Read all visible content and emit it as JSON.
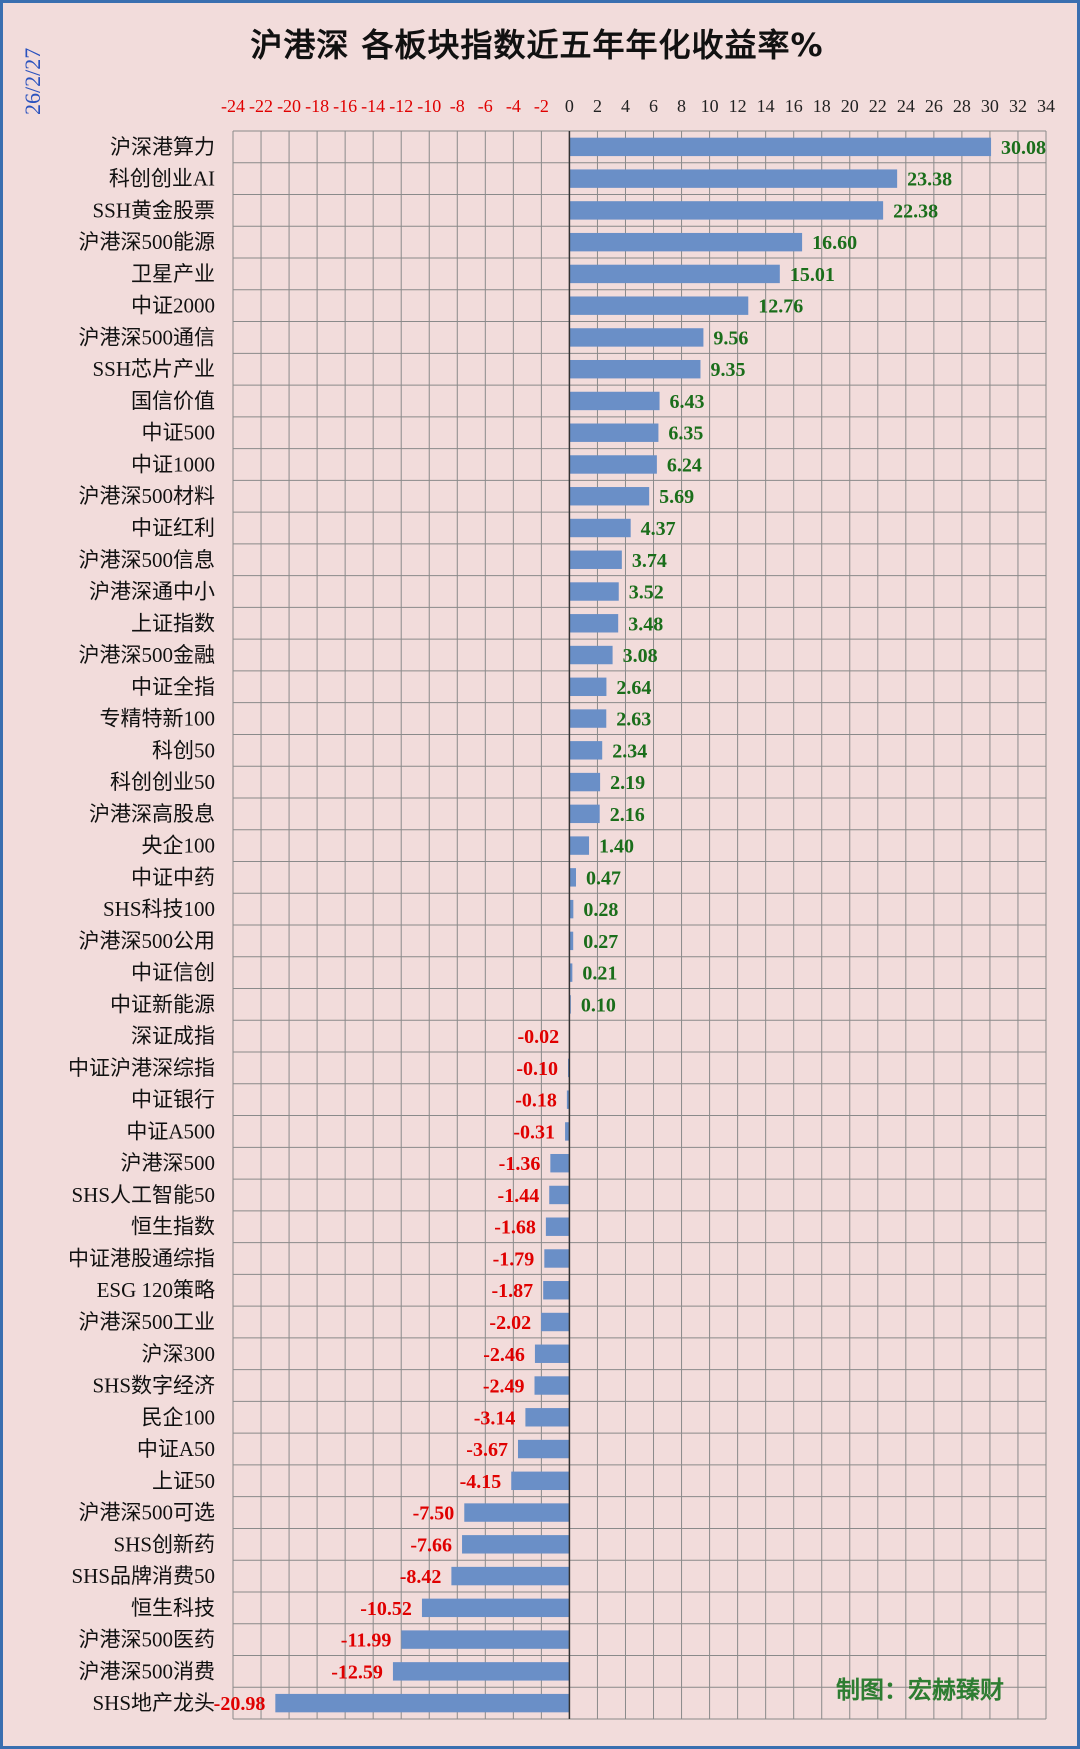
{
  "title": "沪港深 各板块指数近五年年化收益率%",
  "date_label": "26/2/27",
  "credit": "制图：宏赫臻财",
  "colors": {
    "background": "#f2dcdb",
    "bar": "#6a8fc7",
    "grid": "#8a8a8a",
    "positive_label": "#1b6e1b",
    "negative_label": "#e00000",
    "tick_negative": "#e00000",
    "tick_positive": "#222222",
    "frame": "#3a6fb0"
  },
  "chart_data": {
    "type": "bar",
    "orientation": "horizontal",
    "xlim": [
      -24,
      34
    ],
    "x_ticks": [
      -24,
      -22,
      -20,
      -18,
      -16,
      -14,
      -12,
      -10,
      -8,
      -6,
      -4,
      -2,
      0,
      2,
      4,
      6,
      8,
      10,
      12,
      14,
      16,
      18,
      20,
      22,
      24,
      26,
      28,
      30,
      32,
      34
    ],
    "x_tick_labels": [
      "-24",
      "-22",
      "-20",
      "-18",
      "-16",
      "-14",
      "-12",
      "-10",
      "-8",
      "-6",
      "-4",
      "-2",
      "0",
      "2",
      "4",
      "6",
      "8",
      "10",
      "12",
      "14",
      "16",
      "18",
      "20",
      "22",
      "24",
      "26",
      "28",
      "30",
      "32",
      "34"
    ],
    "grid": true,
    "legend": "none",
    "categories": [
      "沪深港算力",
      "科创创业AI",
      "SSH黄金股票",
      "沪港深500能源",
      "卫星产业",
      "中证2000",
      "沪港深500通信",
      "SSH芯片产业",
      "国信价值",
      "中证500",
      "中证1000",
      "沪港深500材料",
      "中证红利",
      "沪港深500信息",
      "沪港深通中小",
      "上证指数",
      "沪港深500金融",
      "中证全指",
      "专精特新100",
      "科创50",
      "科创创业50",
      "沪港深高股息",
      "央企100",
      "中证中药",
      "SHS科技100",
      "沪港深500公用",
      "中证信创",
      "中证新能源",
      "深证成指",
      "中证沪港深综指",
      "中证银行",
      "中证A500",
      "沪港深500",
      "SHS人工智能50",
      "恒生指数",
      "中证港股通综指",
      "ESG 120策略",
      "沪港深500工业",
      "沪深300",
      "SHS数字经济",
      "民企100",
      "中证A50",
      "上证50",
      "沪港深500可选",
      "SHS创新药",
      "SHS品牌消费50",
      "恒生科技",
      "沪港深500医药",
      "沪港深500消费",
      "SHS地产龙头"
    ],
    "values": [
      30.08,
      23.38,
      22.38,
      16.6,
      15.01,
      12.76,
      9.56,
      9.35,
      6.43,
      6.35,
      6.24,
      5.69,
      4.37,
      3.74,
      3.52,
      3.48,
      3.08,
      2.64,
      2.63,
      2.34,
      2.19,
      2.16,
      1.4,
      0.47,
      0.28,
      0.27,
      0.21,
      0.1,
      -0.02,
      -0.1,
      -0.18,
      -0.31,
      -1.36,
      -1.44,
      -1.68,
      -1.79,
      -1.87,
      -2.02,
      -2.46,
      -2.49,
      -3.14,
      -3.67,
      -4.15,
      -7.5,
      -7.66,
      -8.42,
      -10.52,
      -11.99,
      -12.59,
      -20.98
    ],
    "value_labels": [
      "30.08",
      "23.38",
      "22.38",
      "16.60",
      "15.01",
      "12.76",
      "9.56",
      "9.35",
      "6.43",
      "6.35",
      "6.24",
      "5.69",
      "4.37",
      "3.74",
      "3.52",
      "3.48",
      "3.08",
      "2.64",
      "2.63",
      "2.34",
      "2.19",
      "2.16",
      "1.40",
      "0.47",
      "0.28",
      "0.27",
      "0.21",
      "0.10",
      "-0.02",
      "-0.10",
      "-0.18",
      "-0.31",
      "-1.36",
      "-1.44",
      "-1.68",
      "-1.79",
      "-1.87",
      "-2.02",
      "-2.46",
      "-2.49",
      "-3.14",
      "-3.67",
      "-4.15",
      "-7.50",
      "-7.66",
      "-8.42",
      "-10.52",
      "-11.99",
      "-12.59",
      "-20.98"
    ]
  }
}
